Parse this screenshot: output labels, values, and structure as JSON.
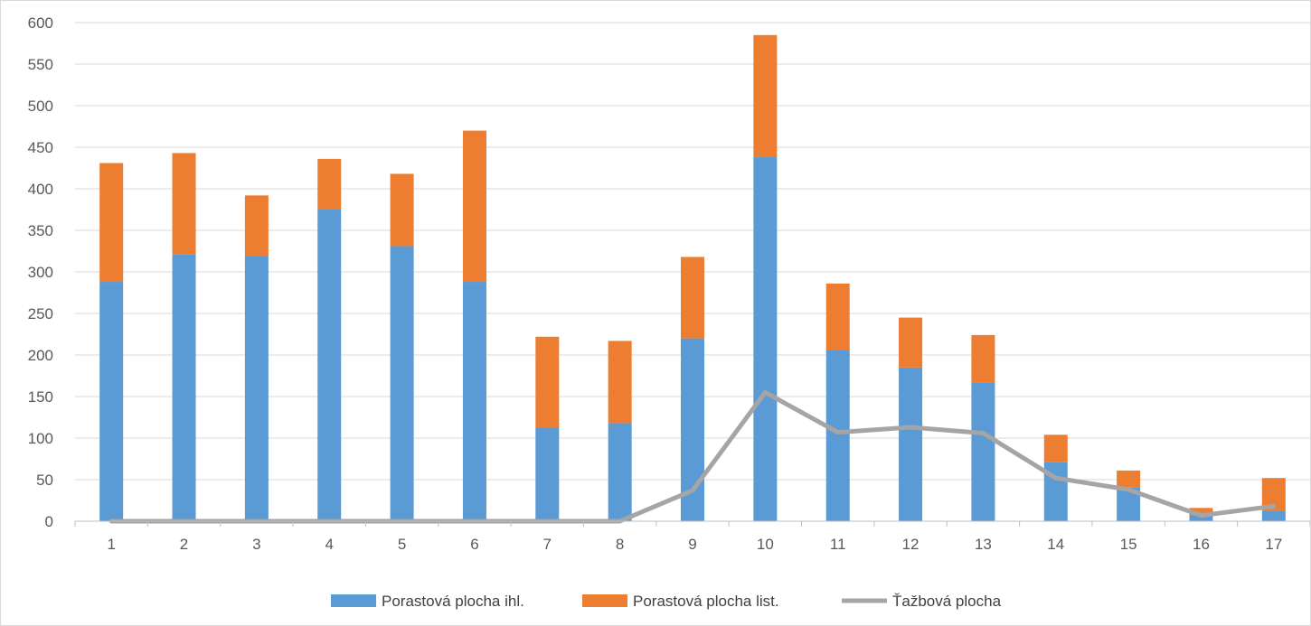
{
  "chart_data": {
    "type": "bar",
    "stacked": true,
    "title": "",
    "xlabel": "",
    "ylabel": "",
    "ylim": [
      0,
      600
    ],
    "y_tick_step": 50,
    "grid": true,
    "legend_position": "bottom",
    "categories": [
      "1",
      "2",
      "3",
      "4",
      "5",
      "6",
      "7",
      "8",
      "9",
      "10",
      "11",
      "12",
      "13",
      "14",
      "15",
      "16",
      "17"
    ],
    "series": [
      {
        "name": "Porastová plocha ihl.",
        "kind": "bar",
        "color": "#5B9BD5",
        "values": [
          288,
          321,
          319,
          375,
          331,
          288,
          113,
          118,
          220,
          438,
          206,
          185,
          167,
          71,
          41,
          7,
          12
        ]
      },
      {
        "name": "Porastová plocha list.",
        "kind": "bar",
        "color": "#ED7D31",
        "values": [
          143,
          122,
          73,
          61,
          87,
          182,
          109,
          99,
          98,
          147,
          80,
          60,
          57,
          33,
          20,
          9,
          40
        ]
      },
      {
        "name": "Ťažbová plocha",
        "kind": "line",
        "color": "#A5A5A5",
        "values": [
          0,
          0,
          0,
          0,
          0,
          0,
          0,
          0,
          37,
          155,
          107,
          113,
          106,
          52,
          38,
          7,
          18
        ]
      }
    ]
  }
}
